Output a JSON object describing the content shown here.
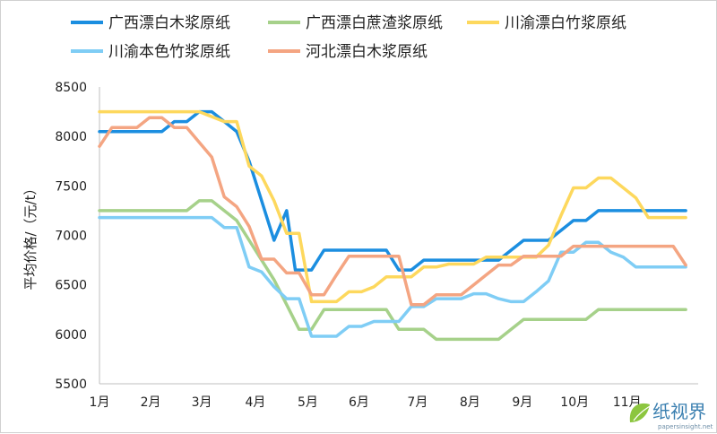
{
  "chart_data": {
    "type": "line",
    "title": "",
    "xlabel": "",
    "ylabel": "平均价格/（元/t）",
    "ylim": [
      5500,
      8500
    ],
    "yticks": [
      5500,
      6000,
      6500,
      7000,
      7500,
      8000,
      8500
    ],
    "xlim": [
      0,
      48
    ],
    "xticks": [
      {
        "label": "1月",
        "x": 0
      },
      {
        "label": "2月",
        "x": 4.1
      },
      {
        "label": "3月",
        "x": 8.2
      },
      {
        "label": "4月",
        "x": 12.5
      },
      {
        "label": "5月",
        "x": 16.7
      },
      {
        "label": "6月",
        "x": 20.8
      },
      {
        "label": "7月",
        "x": 25.5
      },
      {
        "label": "8月",
        "x": 29.7
      },
      {
        "label": "9月",
        "x": 33.9
      },
      {
        "label": "10月",
        "x": 38.1
      },
      {
        "label": "11月",
        "x": 42.3
      }
    ],
    "grid": false,
    "legend_position": "top",
    "series": [
      {
        "name": "广西漂白木浆原纸",
        "color": "#1b8ee0",
        "points": [
          [
            0,
            8050
          ],
          [
            1,
            8050
          ],
          [
            2,
            8050
          ],
          [
            3,
            8050
          ],
          [
            4,
            8050
          ],
          [
            5,
            8050
          ],
          [
            6,
            8150
          ],
          [
            7,
            8150
          ],
          [
            8,
            8250
          ],
          [
            9,
            8250
          ],
          [
            10,
            8150
          ],
          [
            11,
            8050
          ],
          [
            12,
            7750
          ],
          [
            13,
            7350
          ],
          [
            14,
            6950
          ],
          [
            15,
            7250
          ],
          [
            15.7,
            6650
          ],
          [
            17,
            6650
          ],
          [
            18,
            6850
          ],
          [
            19,
            6850
          ],
          [
            20,
            6850
          ],
          [
            21,
            6850
          ],
          [
            22,
            6850
          ],
          [
            23,
            6850
          ],
          [
            24,
            6650
          ],
          [
            25,
            6650
          ],
          [
            26,
            6750
          ],
          [
            27,
            6750
          ],
          [
            28,
            6750
          ],
          [
            29,
            6750
          ],
          [
            30,
            6750
          ],
          [
            31,
            6750
          ],
          [
            32,
            6750
          ],
          [
            33,
            6850
          ],
          [
            34,
            6950
          ],
          [
            35,
            6950
          ],
          [
            36,
            6950
          ],
          [
            37,
            7050
          ],
          [
            38,
            7150
          ],
          [
            39,
            7150
          ],
          [
            40,
            7250
          ],
          [
            41,
            7250
          ],
          [
            42,
            7250
          ],
          [
            43,
            7250
          ],
          [
            44,
            7250
          ],
          [
            45,
            7250
          ],
          [
            46,
            7250
          ],
          [
            47,
            7250
          ]
        ]
      },
      {
        "name": "广西漂白蔗渣浆原纸",
        "color": "#a6d18a",
        "points": [
          [
            0,
            7250
          ],
          [
            1,
            7250
          ],
          [
            2,
            7250
          ],
          [
            3,
            7250
          ],
          [
            4,
            7250
          ],
          [
            5,
            7250
          ],
          [
            6,
            7250
          ],
          [
            7,
            7250
          ],
          [
            8,
            7350
          ],
          [
            9,
            7350
          ],
          [
            10,
            7250
          ],
          [
            11,
            7150
          ],
          [
            12,
            6950
          ],
          [
            13,
            6750
          ],
          [
            14,
            6550
          ],
          [
            15,
            6300
          ],
          [
            16,
            6050
          ],
          [
            17,
            6050
          ],
          [
            18,
            6250
          ],
          [
            19,
            6250
          ],
          [
            20,
            6250
          ],
          [
            21,
            6250
          ],
          [
            22,
            6250
          ],
          [
            23,
            6250
          ],
          [
            24,
            6050
          ],
          [
            25,
            6050
          ],
          [
            26,
            6050
          ],
          [
            27,
            5950
          ],
          [
            28,
            5950
          ],
          [
            29,
            5950
          ],
          [
            30,
            5950
          ],
          [
            31,
            5950
          ],
          [
            32,
            5950
          ],
          [
            33,
            6050
          ],
          [
            34,
            6150
          ],
          [
            35,
            6150
          ],
          [
            36,
            6150
          ],
          [
            37,
            6150
          ],
          [
            38,
            6150
          ],
          [
            39,
            6150
          ],
          [
            40,
            6250
          ],
          [
            41,
            6250
          ],
          [
            42,
            6250
          ],
          [
            43,
            6250
          ],
          [
            44,
            6250
          ],
          [
            45,
            6250
          ],
          [
            46,
            6250
          ],
          [
            47,
            6250
          ]
        ]
      },
      {
        "name": "川渝漂白竹浆原纸",
        "color": "#fdd85d",
        "points": [
          [
            0,
            8250
          ],
          [
            1,
            8250
          ],
          [
            2,
            8250
          ],
          [
            3,
            8250
          ],
          [
            4,
            8250
          ],
          [
            5,
            8250
          ],
          [
            6,
            8250
          ],
          [
            7,
            8250
          ],
          [
            8,
            8250
          ],
          [
            9,
            8200
          ],
          [
            10,
            8150
          ],
          [
            11,
            8150
          ],
          [
            12,
            7700
          ],
          [
            13,
            7600
          ],
          [
            14,
            7350
          ],
          [
            15,
            7020
          ],
          [
            16,
            7020
          ],
          [
            17,
            6330
          ],
          [
            18,
            6330
          ],
          [
            19,
            6330
          ],
          [
            20,
            6430
          ],
          [
            21,
            6430
          ],
          [
            22,
            6480
          ],
          [
            23,
            6580
          ],
          [
            24,
            6580
          ],
          [
            25,
            6580
          ],
          [
            26,
            6680
          ],
          [
            27,
            6680
          ],
          [
            28,
            6710
          ],
          [
            29,
            6710
          ],
          [
            30,
            6710
          ],
          [
            31,
            6780
          ],
          [
            32,
            6780
          ],
          [
            33,
            6780
          ],
          [
            34,
            6780
          ],
          [
            35,
            6780
          ],
          [
            36,
            6900
          ],
          [
            37,
            7200
          ],
          [
            38,
            7480
          ],
          [
            39,
            7480
          ],
          [
            40,
            7580
          ],
          [
            41,
            7580
          ],
          [
            42,
            7480
          ],
          [
            43,
            7380
          ],
          [
            44,
            7180
          ],
          [
            45,
            7180
          ],
          [
            46,
            7180
          ],
          [
            47,
            7180
          ]
        ]
      },
      {
        "name": "川渝本色竹浆原纸",
        "color": "#7fcdf5",
        "points": [
          [
            0,
            7180
          ],
          [
            1,
            7180
          ],
          [
            2,
            7180
          ],
          [
            3,
            7180
          ],
          [
            4,
            7180
          ],
          [
            5,
            7180
          ],
          [
            6,
            7180
          ],
          [
            7,
            7180
          ],
          [
            8,
            7180
          ],
          [
            9,
            7180
          ],
          [
            10,
            7080
          ],
          [
            11,
            7080
          ],
          [
            12,
            6680
          ],
          [
            13,
            6630
          ],
          [
            14,
            6480
          ],
          [
            15,
            6360
          ],
          [
            16,
            6360
          ],
          [
            17,
            5980
          ],
          [
            18,
            5980
          ],
          [
            19,
            5980
          ],
          [
            20,
            6080
          ],
          [
            21,
            6080
          ],
          [
            22,
            6130
          ],
          [
            23,
            6130
          ],
          [
            24,
            6130
          ],
          [
            25,
            6280
          ],
          [
            26,
            6280
          ],
          [
            27,
            6360
          ],
          [
            28,
            6360
          ],
          [
            29,
            6360
          ],
          [
            30,
            6410
          ],
          [
            31,
            6410
          ],
          [
            32,
            6360
          ],
          [
            33,
            6330
          ],
          [
            34,
            6330
          ],
          [
            35,
            6430
          ],
          [
            36,
            6540
          ],
          [
            37,
            6830
          ],
          [
            38,
            6830
          ],
          [
            39,
            6930
          ],
          [
            40,
            6930
          ],
          [
            41,
            6830
          ],
          [
            42,
            6780
          ],
          [
            43,
            6680
          ],
          [
            44,
            6680
          ],
          [
            45,
            6680
          ],
          [
            46,
            6680
          ],
          [
            47,
            6680
          ]
        ]
      },
      {
        "name": "河北漂白木浆原纸",
        "color": "#f4a582",
        "points": [
          [
            0,
            7900
          ],
          [
            1,
            8090
          ],
          [
            2,
            8090
          ],
          [
            3,
            8090
          ],
          [
            4,
            8190
          ],
          [
            5,
            8190
          ],
          [
            6,
            8090
          ],
          [
            7,
            8090
          ],
          [
            8,
            7940
          ],
          [
            9,
            7790
          ],
          [
            10,
            7390
          ],
          [
            11,
            7290
          ],
          [
            12,
            7090
          ],
          [
            13,
            6760
          ],
          [
            14,
            6760
          ],
          [
            15,
            6620
          ],
          [
            16,
            6620
          ],
          [
            17,
            6400
          ],
          [
            18,
            6400
          ],
          [
            19,
            6600
          ],
          [
            20,
            6790
          ],
          [
            21,
            6790
          ],
          [
            22,
            6790
          ],
          [
            23,
            6790
          ],
          [
            24,
            6790
          ],
          [
            25,
            6300
          ],
          [
            26,
            6300
          ],
          [
            27,
            6400
          ],
          [
            28,
            6400
          ],
          [
            29,
            6400
          ],
          [
            30,
            6500
          ],
          [
            31,
            6600
          ],
          [
            32,
            6700
          ],
          [
            33,
            6700
          ],
          [
            34,
            6790
          ],
          [
            35,
            6790
          ],
          [
            36,
            6790
          ],
          [
            37,
            6790
          ],
          [
            38,
            6890
          ],
          [
            39,
            6890
          ],
          [
            40,
            6890
          ],
          [
            41,
            6890
          ],
          [
            42,
            6890
          ],
          [
            43,
            6890
          ],
          [
            44,
            6890
          ],
          [
            45,
            6890
          ],
          [
            46,
            6890
          ],
          [
            47,
            6700
          ]
        ]
      }
    ]
  },
  "watermark": {
    "text": "纸视界",
    "url": "papersinsight.net"
  }
}
